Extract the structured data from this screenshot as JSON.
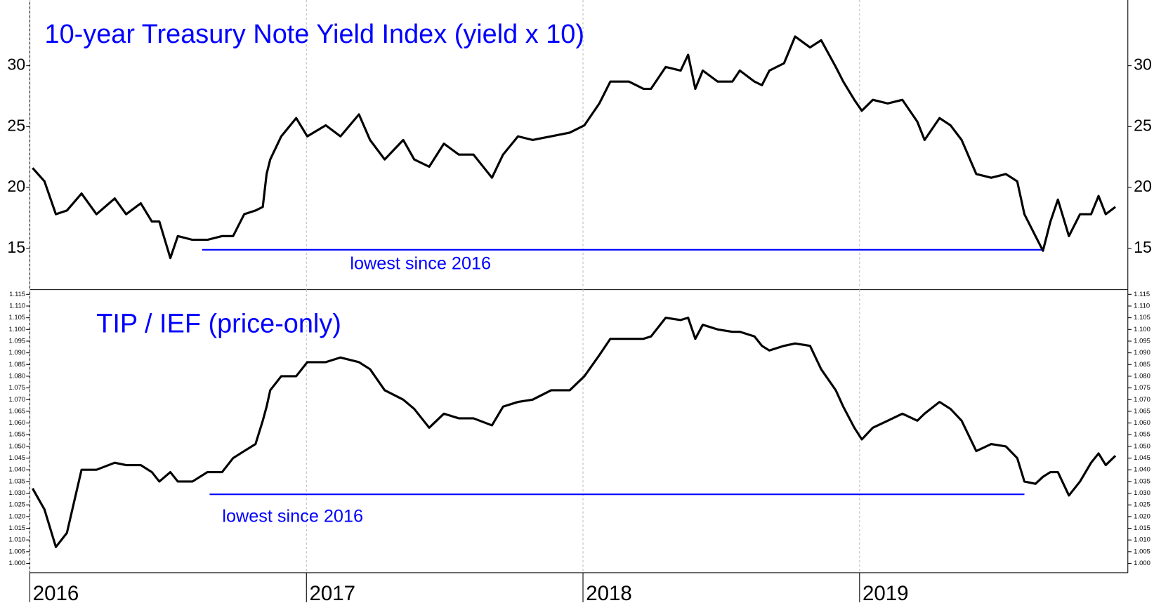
{
  "chart_data": [
    {
      "type": "line",
      "title": "10-year Treasury Note Yield Index (yield x 10)",
      "x": [
        2016.01,
        2016.053,
        2016.094,
        2016.134,
        2016.187,
        2016.241,
        2016.307,
        2016.348,
        2016.401,
        2016.441,
        2016.468,
        2016.508,
        2016.535,
        2016.588,
        2016.642,
        2016.695,
        2016.735,
        2016.775,
        2016.816,
        2016.842,
        2016.856,
        2016.869,
        2016.909,
        2016.963,
        2017.003,
        2017.07,
        2017.123,
        2017.19,
        2017.23,
        2017.283,
        2017.35,
        2017.39,
        2017.444,
        2017.497,
        2017.551,
        2017.604,
        2017.671,
        2017.711,
        2017.765,
        2017.818,
        2017.885,
        2017.952,
        2018.005,
        2018.059,
        2018.099,
        2018.166,
        2018.219,
        2018.246,
        2018.299,
        2018.353,
        2018.38,
        2018.406,
        2018.433,
        2018.487,
        2018.54,
        2018.567,
        2018.62,
        2018.647,
        2018.674,
        2018.727,
        2018.767,
        2018.821,
        2018.861,
        2018.914,
        2018.941,
        2018.981,
        2019.008,
        2019.048,
        2019.102,
        2019.155,
        2019.209,
        2019.235,
        2019.289,
        2019.329,
        2019.369,
        2019.422,
        2019.476,
        2019.529,
        2019.57,
        2019.596,
        2019.636,
        2019.663,
        2019.69,
        2019.717,
        2019.757,
        2019.797,
        2019.837,
        2019.864,
        2019.89,
        2019.925
      ],
      "values": [
        21.6,
        20.5,
        17.8,
        18.1,
        19.5,
        17.8,
        19.1,
        17.8,
        18.7,
        17.2,
        17.2,
        14.2,
        16.0,
        15.7,
        15.7,
        16.0,
        16.0,
        17.8,
        18.1,
        18.4,
        21.1,
        22.3,
        24.2,
        25.7,
        24.2,
        25.1,
        24.2,
        26.0,
        23.9,
        22.3,
        23.9,
        22.3,
        21.7,
        23.6,
        22.7,
        22.7,
        20.8,
        22.7,
        24.2,
        23.9,
        24.2,
        24.5,
        25.1,
        26.9,
        28.7,
        28.7,
        28.1,
        28.1,
        29.9,
        29.6,
        30.9,
        28.1,
        29.6,
        28.7,
        28.7,
        29.6,
        28.7,
        28.4,
        29.6,
        30.2,
        32.4,
        31.5,
        32.1,
        29.9,
        28.7,
        27.2,
        26.3,
        27.2,
        26.9,
        27.2,
        25.4,
        23.9,
        25.7,
        25.1,
        23.9,
        21.1,
        20.8,
        21.1,
        20.5,
        17.8,
        16.0,
        14.8,
        17.2,
        19.0,
        16.0,
        17.8,
        17.8,
        19.3,
        17.8,
        18.4
      ],
      "color": "#000000",
      "xlim": [
        2016.0,
        2019.97
      ],
      "xticks": [
        2016,
        2017,
        2018,
        2019
      ],
      "ylim": [
        11.6,
        35.4
      ],
      "yticks": [
        15,
        20,
        25,
        30
      ],
      "grid": true,
      "reference_line": {
        "value": 14.88,
        "x": [
          2016.623,
          2019.663
        ],
        "color": "#0000ff",
        "label": "lowest since 2016"
      }
    },
    {
      "type": "line",
      "title": "TIP / IEF (price-only)",
      "x": [
        2016.01,
        2016.053,
        2016.094,
        2016.134,
        2016.187,
        2016.241,
        2016.307,
        2016.348,
        2016.401,
        2016.441,
        2016.468,
        2016.508,
        2016.535,
        2016.588,
        2016.642,
        2016.695,
        2016.735,
        2016.775,
        2016.816,
        2016.842,
        2016.856,
        2016.869,
        2016.909,
        2016.963,
        2017.003,
        2017.07,
        2017.123,
        2017.19,
        2017.23,
        2017.283,
        2017.35,
        2017.39,
        2017.444,
        2017.497,
        2017.551,
        2017.604,
        2017.671,
        2017.711,
        2017.765,
        2017.818,
        2017.885,
        2017.952,
        2018.005,
        2018.059,
        2018.099,
        2018.166,
        2018.219,
        2018.246,
        2018.299,
        2018.353,
        2018.38,
        2018.406,
        2018.433,
        2018.487,
        2018.54,
        2018.567,
        2018.62,
        2018.647,
        2018.674,
        2018.727,
        2018.767,
        2018.821,
        2018.861,
        2018.914,
        2018.941,
        2018.981,
        2019.008,
        2019.048,
        2019.102,
        2019.155,
        2019.209,
        2019.235,
        2019.289,
        2019.329,
        2019.369,
        2019.422,
        2019.476,
        2019.529,
        2019.57,
        2019.596,
        2019.636,
        2019.663,
        2019.69,
        2019.717,
        2019.757,
        2019.797,
        2019.837,
        2019.864,
        2019.89,
        2019.925
      ],
      "values": [
        1.032,
        1.023,
        1.007,
        1.013,
        1.04,
        1.04,
        1.043,
        1.042,
        1.042,
        1.039,
        1.035,
        1.039,
        1.035,
        1.035,
        1.039,
        1.039,
        1.045,
        1.048,
        1.051,
        1.061,
        1.067,
        1.074,
        1.08,
        1.08,
        1.086,
        1.086,
        1.088,
        1.086,
        1.083,
        1.074,
        1.07,
        1.066,
        1.058,
        1.064,
        1.062,
        1.062,
        1.059,
        1.067,
        1.069,
        1.07,
        1.074,
        1.074,
        1.08,
        1.089,
        1.096,
        1.096,
        1.096,
        1.097,
        1.105,
        1.104,
        1.105,
        1.096,
        1.102,
        1.1,
        1.099,
        1.099,
        1.097,
        1.093,
        1.091,
        1.093,
        1.094,
        1.093,
        1.083,
        1.074,
        1.067,
        1.058,
        1.053,
        1.058,
        1.061,
        1.064,
        1.061,
        1.064,
        1.069,
        1.066,
        1.061,
        1.048,
        1.051,
        1.05,
        1.045,
        1.035,
        1.034,
        1.037,
        1.039,
        1.039,
        1.029,
        1.035,
        1.043,
        1.047,
        1.042,
        1.046
      ],
      "color": "#000000",
      "xlim": [
        2016.0,
        2019.97
      ],
      "xticks": [
        2016,
        2017,
        2018,
        2019
      ],
      "ylim": [
        0.996,
        1.117
      ],
      "yticks": [
        {
          "value": 1.0,
          "label": "1.000"
        },
        1.005,
        {
          "value": 1.01,
          "label": "1.010"
        },
        1.015,
        {
          "value": 1.02,
          "label": "1.020"
        },
        1.025,
        {
          "value": 1.03,
          "label": "1.030"
        },
        1.035,
        {
          "value": 1.04,
          "label": "1.040"
        },
        1.045,
        {
          "value": 1.05,
          "label": "1.050"
        },
        1.055,
        {
          "value": 1.06,
          "label": "1.060"
        },
        1.065,
        {
          "value": 1.07,
          "label": "1.070"
        },
        1.075,
        {
          "value": 1.08,
          "label": "1.080"
        },
        1.085,
        {
          "value": 1.09,
          "label": "1.090"
        },
        1.095,
        {
          "value": 1.1,
          "label": "1.100"
        },
        1.105,
        {
          "value": 1.11,
          "label": "1.110"
        },
        1.115
      ],
      "grid": true,
      "reference_line": {
        "value": 1.0295,
        "x": [
          2016.65,
          2019.596
        ],
        "color": "#0000ff",
        "label": "lowest since 2016"
      }
    }
  ]
}
